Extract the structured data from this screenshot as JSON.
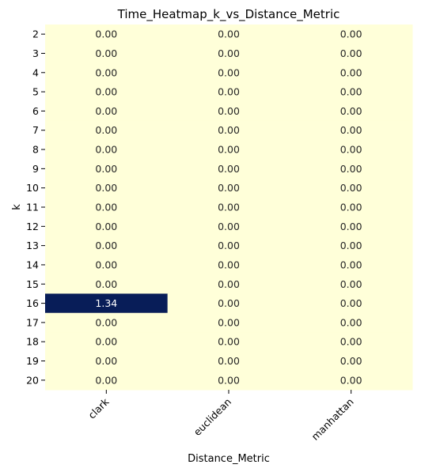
{
  "chart_data": {
    "type": "heatmap",
    "title": "Time_Heatmap_k_vs_Distance_Metric",
    "xlabel": "Distance_Metric",
    "ylabel": "k",
    "x_categories": [
      "clark",
      "euclidean",
      "manhattan"
    ],
    "y_categories": [
      "2",
      "3",
      "4",
      "5",
      "6",
      "7",
      "8",
      "9",
      "10",
      "11",
      "12",
      "13",
      "14",
      "15",
      "16",
      "17",
      "18",
      "19",
      "20"
    ],
    "values": [
      [
        0.0,
        0.0,
        0.0
      ],
      [
        0.0,
        0.0,
        0.0
      ],
      [
        0.0,
        0.0,
        0.0
      ],
      [
        0.0,
        0.0,
        0.0
      ],
      [
        0.0,
        0.0,
        0.0
      ],
      [
        0.0,
        0.0,
        0.0
      ],
      [
        0.0,
        0.0,
        0.0
      ],
      [
        0.0,
        0.0,
        0.0
      ],
      [
        0.0,
        0.0,
        0.0
      ],
      [
        0.0,
        0.0,
        0.0
      ],
      [
        0.0,
        0.0,
        0.0
      ],
      [
        0.0,
        0.0,
        0.0
      ],
      [
        0.0,
        0.0,
        0.0
      ],
      [
        0.0,
        0.0,
        0.0
      ],
      [
        1.34,
        0.0,
        0.0
      ],
      [
        0.0,
        0.0,
        0.0
      ],
      [
        0.0,
        0.0,
        0.0
      ],
      [
        0.0,
        0.0,
        0.0
      ],
      [
        0.0,
        0.0,
        0.0
      ]
    ],
    "value_format": "0.00",
    "colormap": "YlGnBu",
    "color_low": "#ffffd9",
    "color_high": "#081d58",
    "text_color_low": "#262626",
    "text_color_high": "#ffffff",
    "colorbar": false,
    "x_tick_rotation_deg": 45
  }
}
